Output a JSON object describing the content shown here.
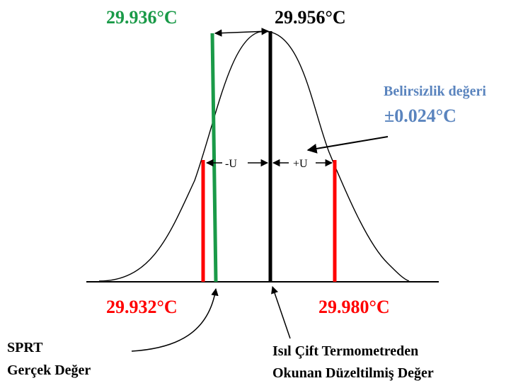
{
  "labels": {
    "green_value": "29.936°C",
    "black_value": "29.956°C",
    "left_red_value": "29.932°C",
    "right_red_value": "29.980°C",
    "uncertainty_title": "Belirsizlik değeri",
    "uncertainty_value": "±0.024°C",
    "minus_u": "-U",
    "plus_u": "+U",
    "sprt_line1": "SPRT",
    "sprt_line2": "Gerçek Değer",
    "thermo_line1": "Isıl Çift Termometreden",
    "thermo_line2": "Okunan Düzeltilmiş Değer"
  },
  "colors": {
    "green": "#1a9a48",
    "red": "#ff0000",
    "black": "#000000",
    "blue": "#5a84be"
  }
}
